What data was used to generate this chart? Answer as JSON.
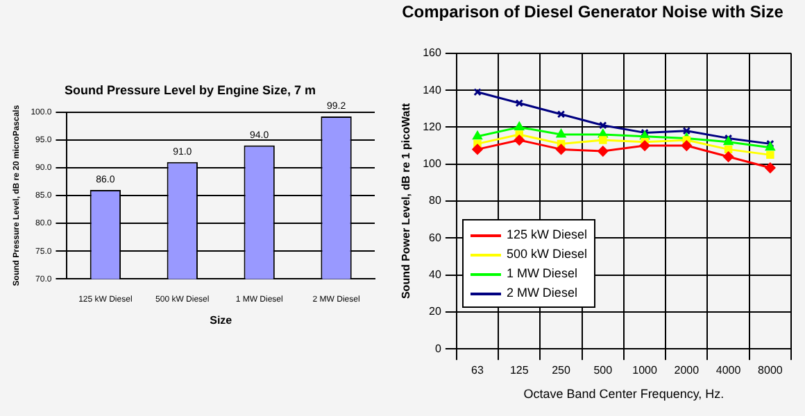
{
  "chart_data": [
    {
      "type": "bar",
      "title": "Sound Pressure Level by Engine Size, 7 m",
      "xlabel": "Size",
      "ylabel": "Sound Pressure Level, dB re 20 microPascals",
      "categories": [
        "125 kW Diesel",
        "500 kW Diesel",
        "1 MW Diesel",
        "2 MW Diesel"
      ],
      "values": [
        86.0,
        91.0,
        94.0,
        99.2
      ],
      "value_labels": [
        "86.0",
        "91.0",
        "94.0",
        "99.2"
      ],
      "color": "#9999ff",
      "ylim": [
        70,
        100
      ],
      "yticks": [
        {
          "value": 70,
          "label": "70.0"
        },
        {
          "value": 75,
          "label": "75.0"
        },
        {
          "value": 80,
          "label": "80.0"
        },
        {
          "value": 85,
          "label": "85.0"
        },
        {
          "value": 90,
          "label": "90.0"
        },
        {
          "value": 95,
          "label": "95.0"
        },
        {
          "value": 100,
          "label": "100.0"
        }
      ],
      "grid": "y",
      "legend": false
    },
    {
      "type": "line",
      "title": "Comparison of Diesel Generator Noise with Size",
      "xlabel": "Octave Band Center Frequency, Hz.",
      "ylabel": "Sound Power Level, dB re 1 picoWatt",
      "categories": [
        "63",
        "125",
        "250",
        "500",
        "1000",
        "2000",
        "4000",
        "8000"
      ],
      "series": [
        {
          "name": "125 kW Diesel",
          "color": "#ff0000",
          "marker": "diamond",
          "values": [
            108,
            113,
            108,
            107,
            110,
            110,
            104,
            98
          ]
        },
        {
          "name": "500 kW Diesel",
          "color": "#ffff00",
          "marker": "square",
          "values": [
            111,
            116,
            111,
            113,
            112,
            113,
            108,
            105
          ]
        },
        {
          "name": "1 MW Diesel",
          "color": "#00ff00",
          "marker": "triangle",
          "values": [
            115,
            120,
            116,
            116,
            115,
            114,
            112,
            109
          ]
        },
        {
          "name": "2 MW Diesel",
          "color": "#000080",
          "marker": "cross",
          "values": [
            139,
            133,
            127,
            121,
            117,
            118,
            114,
            111
          ]
        }
      ],
      "ylim": [
        0,
        160
      ],
      "yticks": [
        0,
        20,
        40,
        60,
        80,
        100,
        120,
        140,
        160
      ],
      "grid": true,
      "legend": "left",
      "line_style": "solid"
    }
  ]
}
